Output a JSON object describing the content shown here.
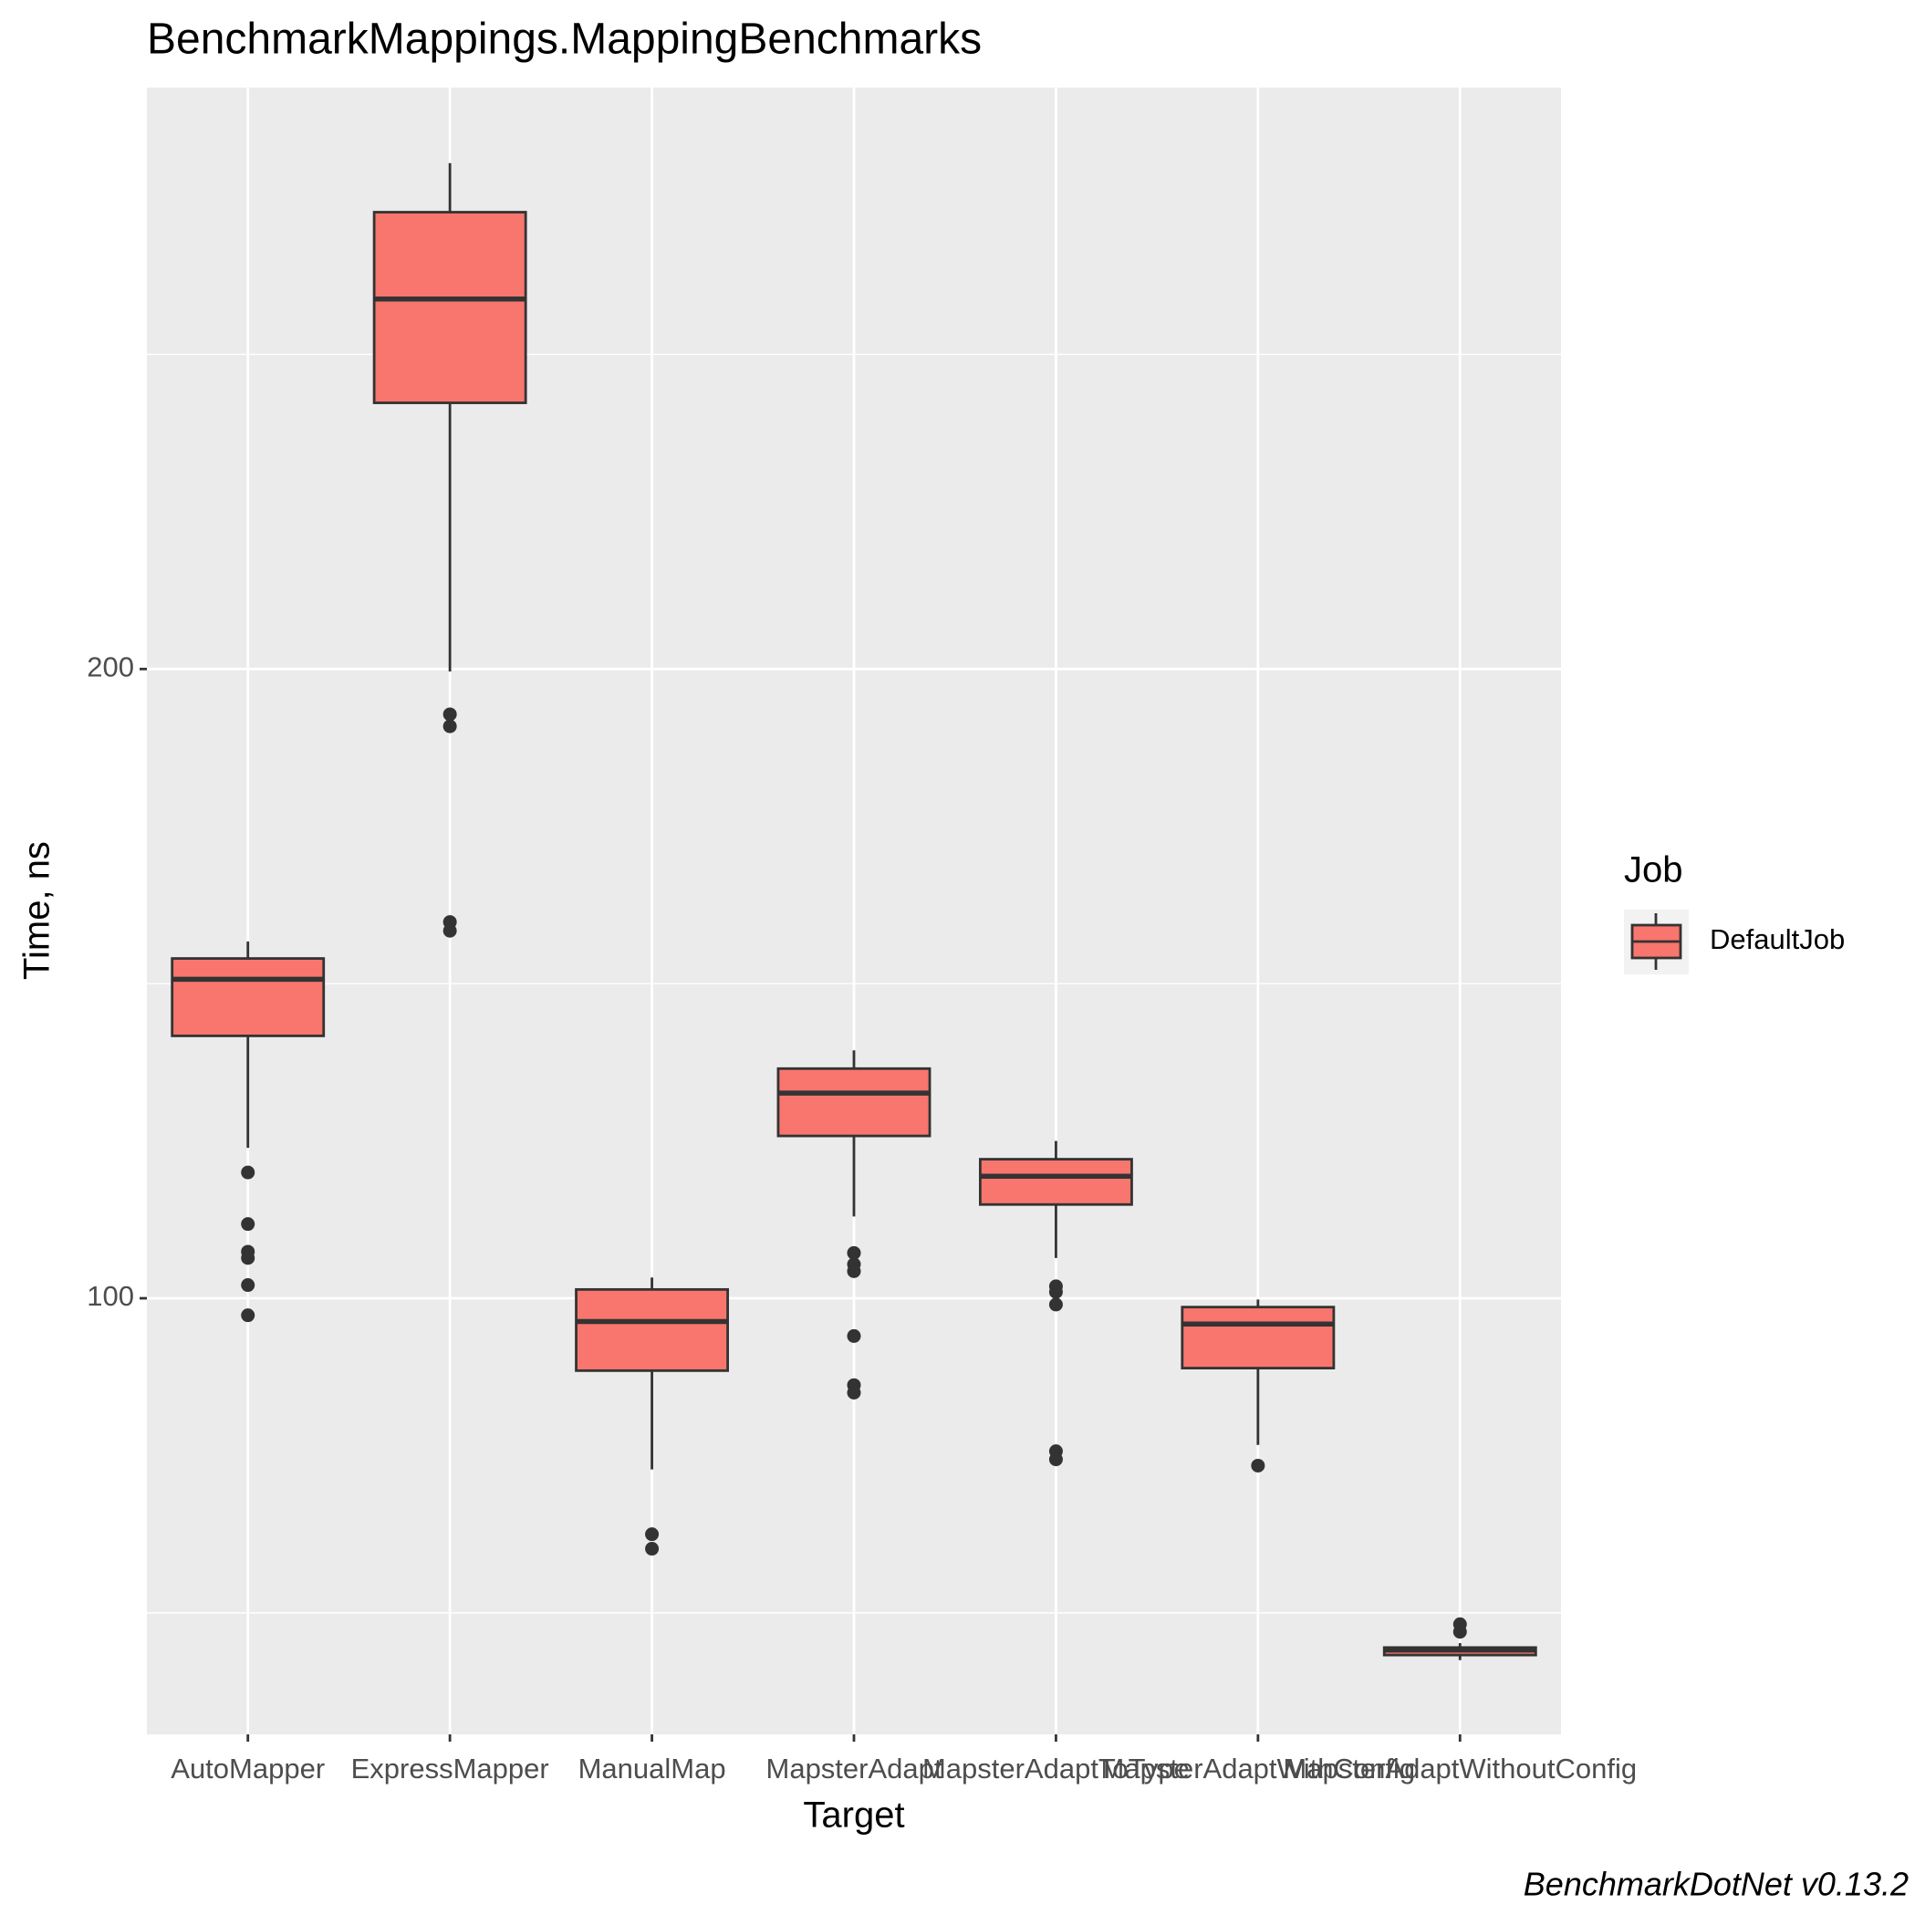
{
  "chart_data": {
    "type": "boxplot",
    "title": "BenchmarkMappings.MappingBenchmarks",
    "x_label": "Target",
    "y_label": "Time, ns",
    "caption": "BenchmarkDotNet v0.13.2",
    "categories": [
      "AutoMapper",
      "ExpressMapper",
      "ManualMap",
      "MapsterAdapt",
      "MapsterAdaptToType",
      "MapsterAdaptWithConfig",
      "MapsterAdaptWithoutConfig"
    ],
    "series": [
      {
        "name": "DefaultJob",
        "color": "#F8766D",
        "boxes": [
          {
            "upper_whisker": 156.7,
            "q3": 154.0,
            "median": 150.7,
            "q1": 141.7,
            "lower_whisker": 123.9,
            "outliers": [
              120.0,
              111.8,
              107.4,
              106.4,
              102.1,
              97.3
            ]
          },
          {
            "upper_whisker": 280.4,
            "q3": 272.6,
            "median": 258.8,
            "q1": 242.3,
            "lower_whisker": 199.6,
            "outliers": [
              192.8,
              190.9,
              159.8,
              158.4
            ]
          },
          {
            "upper_whisker": 103.3,
            "q3": 101.4,
            "median": 96.3,
            "q1": 88.5,
            "lower_whisker": 72.8,
            "outliers": [
              62.5,
              60.2
            ]
          },
          {
            "upper_whisker": 139.4,
            "q3": 136.5,
            "median": 132.6,
            "q1": 125.8,
            "lower_whisker": 113.0,
            "outliers": [
              107.2,
              105.4,
              104.3,
              94.0,
              86.2,
              85.0
            ]
          },
          {
            "upper_whisker": 125.0,
            "q3": 122.1,
            "median": 119.4,
            "q1": 114.9,
            "lower_whisker": 106.4,
            "outliers": [
              101.9,
              101.0,
              99.0,
              75.7,
              74.4
            ]
          },
          {
            "upper_whisker": 99.8,
            "q3": 98.6,
            "median": 95.9,
            "q1": 88.9,
            "lower_whisker": 76.7,
            "outliers": [
              73.4
            ]
          },
          {
            "upper_whisker": 45.2,
            "q3": 44.5,
            "median": 44.1,
            "q1": 43.3,
            "lower_whisker": 42.5,
            "outliers": [
              48.2,
              47.0
            ]
          }
        ]
      }
    ],
    "legend_title": "Job",
    "ylim": [
      30.7,
      292.4
    ],
    "yticks": [
      100,
      200
    ],
    "minor_yticks": [
      50,
      150,
      250
    ],
    "grid": true
  }
}
